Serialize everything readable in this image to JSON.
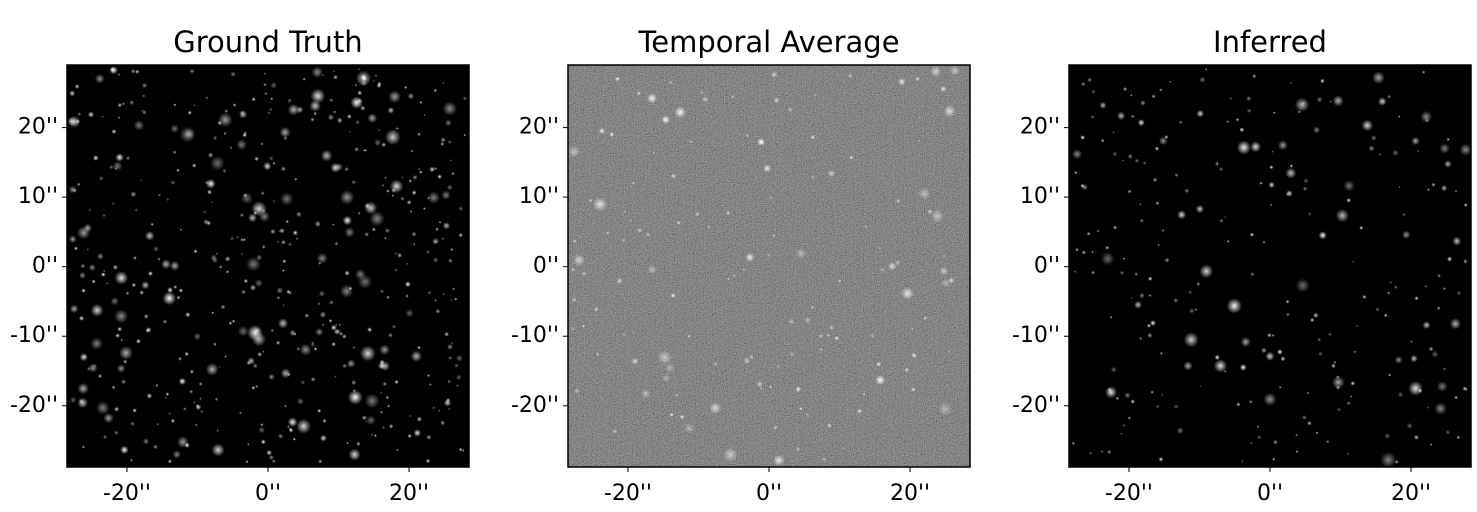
{
  "chart_data": [
    {
      "type": "image",
      "title": "Ground Truth",
      "xlim": [
        -28.5,
        28.5
      ],
      "ylim": [
        -28.8,
        29
      ],
      "xticks": [
        {
          "value": -20,
          "label": "-20''"
        },
        {
          "value": 0,
          "label": "0''"
        },
        {
          "value": 20,
          "label": "20''"
        }
      ],
      "yticks": [
        {
          "value": 20,
          "label": "20''"
        },
        {
          "value": 10,
          "label": "10''"
        },
        {
          "value": 0,
          "label": "0''"
        },
        {
          "value": -10,
          "label": "-10''"
        },
        {
          "value": -20,
          "label": "-20''"
        }
      ]
    },
    {
      "type": "image",
      "title": "Temporal Average",
      "xlim": [
        -28.5,
        28.5
      ],
      "ylim": [
        -28.8,
        29
      ],
      "xticks": [
        {
          "value": -20,
          "label": "-20''"
        },
        {
          "value": 0,
          "label": "0''"
        },
        {
          "value": 20,
          "label": "20''"
        }
      ],
      "yticks": [
        {
          "value": 20,
          "label": "20''"
        },
        {
          "value": 10,
          "label": "10''"
        },
        {
          "value": 0,
          "label": "0''"
        },
        {
          "value": -10,
          "label": "-10''"
        },
        {
          "value": -20,
          "label": "-20''"
        }
      ]
    },
    {
      "type": "image",
      "title": "Inferred",
      "xlim": [
        -28.5,
        28.5
      ],
      "ylim": [
        -28.8,
        29
      ],
      "xticks": [
        {
          "value": -20,
          "label": "-20''"
        },
        {
          "value": 0,
          "label": "0''"
        },
        {
          "value": 20,
          "label": "20''"
        }
      ],
      "yticks": [
        {
          "value": 20,
          "label": "20''"
        },
        {
          "value": 10,
          "label": "10''"
        },
        {
          "value": 0,
          "label": "0''"
        },
        {
          "value": -10,
          "label": "-10''"
        },
        {
          "value": -20,
          "label": "-20''"
        }
      ]
    }
  ]
}
